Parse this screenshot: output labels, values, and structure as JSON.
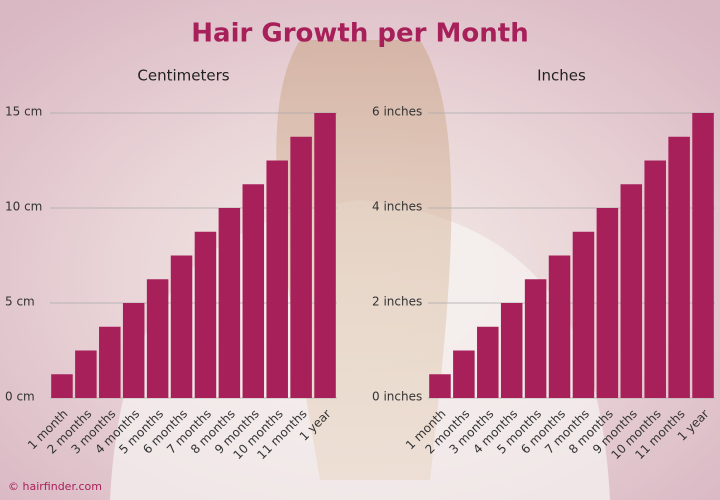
{
  "title": "Hair Growth per Month",
  "footer": "© hairfinder.com",
  "chart_data": [
    {
      "type": "bar",
      "title": "Centimeters",
      "color": "#a8205a",
      "grid": true,
      "categories": [
        "1 month",
        "2 months",
        "3 months",
        "4 months",
        "5 months",
        "6 months",
        "7 months",
        "8 months",
        "9 months",
        "10 months",
        "11 months",
        "1 year"
      ],
      "values": [
        1.25,
        2.5,
        3.75,
        5,
        6.25,
        7.5,
        8.75,
        10,
        11.25,
        12.5,
        13.75,
        15
      ],
      "ylim": [
        0,
        15
      ],
      "yticks": [
        {
          "value": 0,
          "label": "0 cm"
        },
        {
          "value": 5,
          "label": "5 cm"
        },
        {
          "value": 10,
          "label": "10 cm"
        },
        {
          "value": 15,
          "label": "15 cm"
        }
      ]
    },
    {
      "type": "bar",
      "title": "Inches",
      "color": "#a8205a",
      "grid": true,
      "categories": [
        "1 month",
        "2 months",
        "3 months",
        "4 months",
        "5 months",
        "6 months",
        "7 months",
        "8 months",
        "9 months",
        "10 months",
        "11 months",
        "1 year"
      ],
      "values": [
        0.5,
        1,
        1.5,
        2,
        2.5,
        3,
        3.5,
        4,
        4.5,
        5,
        5.5,
        6
      ],
      "ylim": [
        0,
        6
      ],
      "yticks": [
        {
          "value": 0,
          "label": "0 inches"
        },
        {
          "value": 2,
          "label": "2 inches"
        },
        {
          "value": 4,
          "label": "4 inches"
        },
        {
          "value": 6,
          "label": "6 inches"
        }
      ]
    }
  ]
}
